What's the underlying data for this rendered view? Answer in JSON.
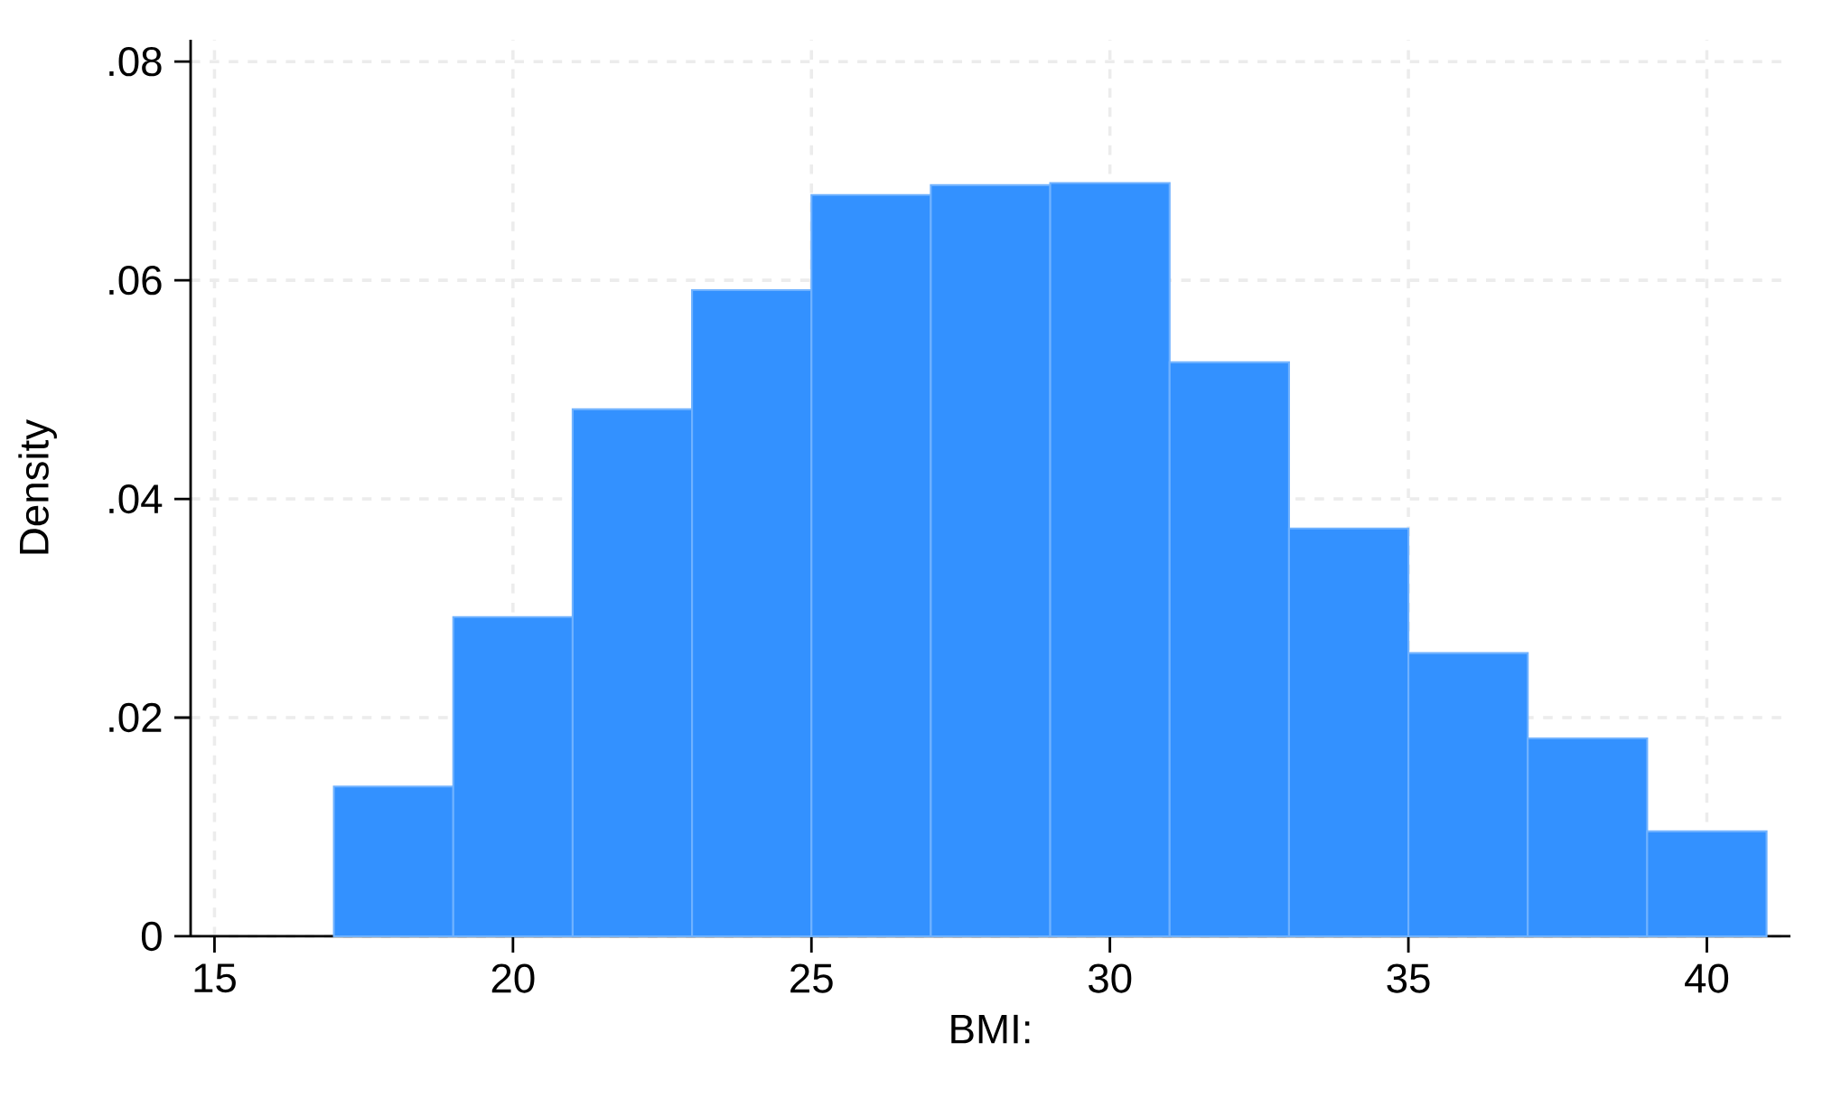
{
  "chart_data": {
    "type": "histogram",
    "xlabel": "BMI:",
    "ylabel": "Density",
    "bins": [
      17,
      19,
      21,
      23,
      25,
      27,
      29,
      31,
      33,
      35,
      37,
      39,
      41
    ],
    "values": [
      0.0137,
      0.0292,
      0.0482,
      0.0591,
      0.0678,
      0.0687,
      0.0689,
      0.0525,
      0.0373,
      0.0259,
      0.0181,
      0.0096
    ],
    "color": "#3391ff",
    "xlim": [
      14.6,
      41.4
    ],
    "ylim": [
      0,
      0.082
    ],
    "xticks": [
      15,
      20,
      25,
      30,
      35,
      40
    ],
    "yticks": [
      0,
      {
        "value": 0.02,
        "label": ".02"
      },
      {
        "value": 0.04,
        "label": ".04"
      },
      {
        "value": 0.06,
        "label": ".06"
      },
      {
        "value": 0.08,
        "label": ".08"
      }
    ],
    "grid": true
  }
}
